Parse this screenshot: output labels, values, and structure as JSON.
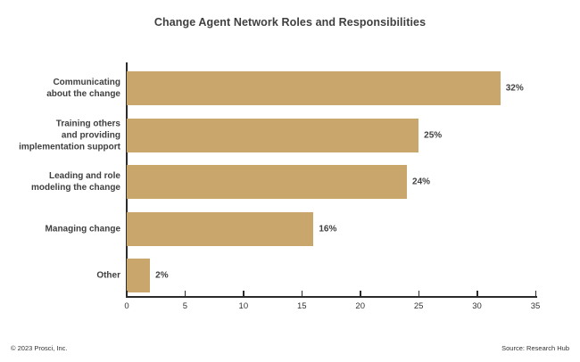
{
  "footer": {
    "left": "© 2023 Prosci, Inc.",
    "right": "Source: Research Hub"
  },
  "colors": {
    "bar": "#C9A76C",
    "text": "#3f3f3f",
    "axis": "#2b2b2b"
  },
  "chart_data": {
    "type": "bar",
    "orientation": "horizontal",
    "title": "Change Agent Network Roles and Responsibilities",
    "categories": [
      "Communicating\nabout the change",
      "Training others\nand providing\nimplementation support",
      "Leading and role\nmodeling the change",
      "Managing change",
      "Other"
    ],
    "values": [
      32,
      25,
      24,
      16,
      2
    ],
    "value_labels": [
      "32%",
      "25%",
      "24%",
      "16%",
      "2%"
    ],
    "xlabel": "",
    "ylabel": "",
    "xlim": [
      0,
      35
    ],
    "xticks": [
      0,
      5,
      10,
      15,
      20,
      25,
      30,
      35
    ],
    "grid": false,
    "legend": false
  }
}
